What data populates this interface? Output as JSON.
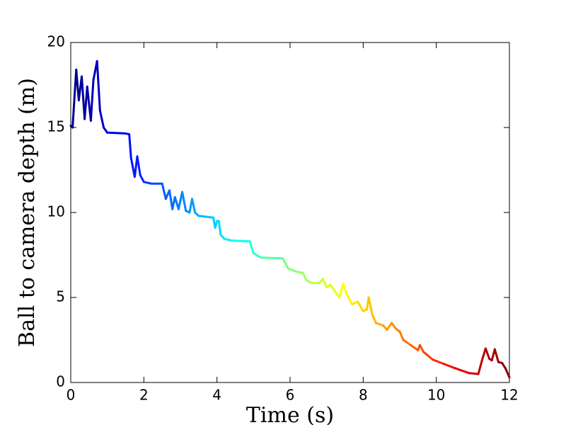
{
  "chart_data": {
    "type": "line",
    "colormap": "jet",
    "xlabel": "Time (s)",
    "ylabel": "Ball to camera depth (m)",
    "x": [
      0.0,
      0.05,
      0.15,
      0.22,
      0.3,
      0.38,
      0.45,
      0.55,
      0.62,
      0.72,
      0.8,
      0.9,
      1.0,
      1.5,
      1.6,
      1.65,
      1.75,
      1.82,
      1.9,
      2.0,
      2.2,
      2.5,
      2.6,
      2.7,
      2.78,
      2.85,
      2.95,
      3.05,
      3.15,
      3.25,
      3.32,
      3.4,
      3.5,
      3.7,
      3.9,
      3.95,
      4.0,
      4.05,
      4.1,
      4.2,
      4.4,
      4.9,
      5.0,
      5.2,
      5.8,
      5.95,
      6.2,
      6.35,
      6.45,
      6.6,
      6.8,
      6.9,
      7.0,
      7.1,
      7.35,
      7.45,
      7.55,
      7.7,
      7.85,
      8.0,
      8.1,
      8.15,
      8.25,
      8.35,
      8.55,
      8.65,
      8.78,
      8.9,
      9.0,
      9.1,
      9.3,
      9.5,
      9.55,
      9.65,
      9.9,
      10.2,
      10.5,
      10.9,
      11.15,
      11.25,
      11.35,
      11.45,
      11.52,
      11.6,
      11.7,
      11.8,
      11.9,
      12.0
    ],
    "y": [
      15.1,
      15.0,
      18.4,
      16.6,
      18.0,
      15.5,
      17.4,
      15.4,
      17.8,
      18.9,
      16.0,
      15.0,
      14.7,
      14.65,
      14.6,
      13.2,
      12.1,
      13.3,
      12.2,
      11.8,
      11.7,
      11.7,
      10.8,
      11.3,
      10.2,
      10.9,
      10.2,
      11.2,
      10.1,
      10.0,
      10.8,
      10.0,
      9.8,
      9.75,
      9.7,
      9.1,
      9.5,
      9.5,
      8.7,
      8.45,
      8.35,
      8.3,
      7.6,
      7.35,
      7.3,
      6.7,
      6.5,
      6.45,
      6.0,
      5.85,
      5.85,
      6.1,
      5.6,
      5.75,
      5.0,
      5.8,
      5.2,
      4.6,
      4.75,
      4.2,
      4.3,
      5.0,
      4.0,
      3.5,
      3.35,
      3.1,
      3.5,
      3.15,
      3.0,
      2.5,
      2.2,
      1.9,
      2.2,
      1.8,
      1.35,
      1.1,
      0.85,
      0.55,
      0.5,
      1.3,
      2.0,
      1.4,
      1.3,
      1.95,
      1.2,
      1.15,
      0.8,
      0.3
    ],
    "xlim": [
      0,
      12
    ],
    "xticks": [
      0,
      2,
      4,
      6,
      8,
      10,
      12
    ],
    "ylim": [
      0,
      20
    ],
    "yticks": [
      0,
      5,
      10,
      15,
      20
    ],
    "grid": false
  }
}
